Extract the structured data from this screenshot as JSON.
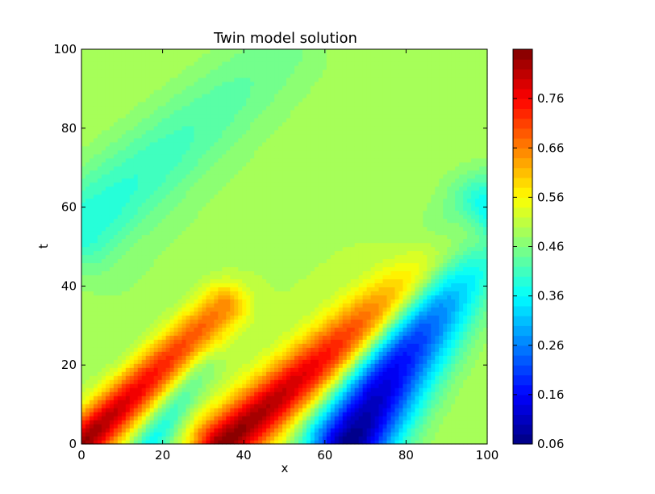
{
  "chart_data": {
    "type": "contour",
    "title": "Twin model solution",
    "xlabel": "x",
    "ylabel": "t",
    "xlim": [
      0,
      100
    ],
    "ylim": [
      0,
      100
    ],
    "xticks": [
      0,
      20,
      40,
      60,
      80,
      100
    ],
    "yticks": [
      0,
      20,
      40,
      60,
      80,
      100
    ],
    "colorbar": {
      "range": [
        0.06,
        0.86
      ],
      "ticks": [
        "0.06",
        "0.16",
        "0.26",
        "0.36",
        "0.46",
        "0.56",
        "0.66",
        "0.76"
      ],
      "levels": 40
    },
    "colormap": "jet",
    "background_value": 0.5,
    "ridges": [
      {
        "from": [
          0,
          0
        ],
        "to": [
          35,
          35
        ],
        "peak": 0.85,
        "width": 4
      },
      {
        "from": [
          35,
          0
        ],
        "to": [
          95,
          52
        ],
        "peak": 0.86,
        "width": 5
      },
      {
        "from": [
          20,
          60
        ],
        "to": [
          100,
          100
        ],
        "peak": 0.5,
        "width": 7
      }
    ],
    "troughs": [
      {
        "from": [
          66,
          0
        ],
        "to": [
          100,
          58
        ],
        "min": 0.06,
        "width": 7
      },
      {
        "from": [
          17,
          0
        ],
        "to": [
          30,
          20
        ],
        "min": 0.36,
        "width": 3
      },
      {
        "from": [
          0,
          55
        ],
        "to": [
          50,
          100
        ],
        "min": 0.38,
        "width": 8
      },
      {
        "from": [
          5,
          25
        ],
        "to": [
          60,
          80
        ],
        "min": 0.48,
        "width": 8
      }
    ]
  }
}
